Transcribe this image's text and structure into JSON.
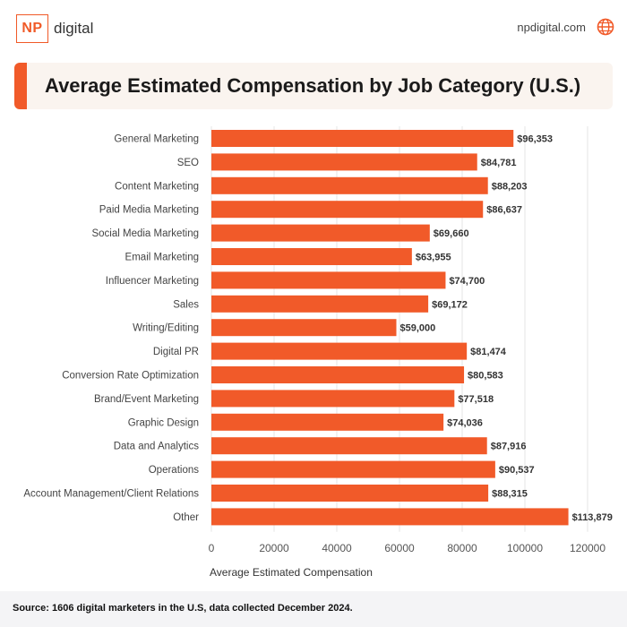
{
  "header": {
    "logo_mark": "NP",
    "logo_word": "digital",
    "site": "npdigital.com",
    "globe_icon": "globe-icon"
  },
  "accent_color": "#f15a29",
  "chart_data": {
    "type": "bar",
    "orientation": "horizontal",
    "title": "Average Estimated Compensation by Job Category (U.S.)",
    "xlabel": "Average Estimated Compensation",
    "ylabel": "",
    "xlim": [
      0,
      120000
    ],
    "xticks": [
      "0",
      "20000",
      "40000",
      "60000",
      "80000",
      "100000",
      "120000"
    ],
    "grid": "vertical",
    "categories": [
      "General Marketing",
      "SEO",
      "Content Marketing",
      "Paid Media Marketing",
      "Social Media Marketing",
      "Email Marketing",
      "Influencer Marketing",
      "Sales",
      "Writing/Editing",
      "Digital PR",
      "Conversion Rate Optimization",
      "Brand/Event Marketing",
      "Graphic Design",
      "Data and Analytics",
      "Operations",
      "Account Management/Client Relations",
      "Other"
    ],
    "values": [
      96353,
      84781,
      88203,
      86637,
      69660,
      63955,
      74700,
      69172,
      59000,
      81474,
      80583,
      77518,
      74036,
      87916,
      90537,
      88315,
      113879
    ],
    "value_labels": [
      "$96,353",
      "$84,781",
      "$88,203",
      "$86,637",
      "$69,660",
      "$63,955",
      "$74,700",
      "$69,172",
      "$59,000",
      "$81,474",
      "$80,583",
      "$77,518",
      "$74,036",
      "$87,916",
      "$90,537",
      "$88,315",
      "$113,879"
    ],
    "bar_color": "#f15a29"
  },
  "footer": {
    "source": "Source: 1606 digital marketers in the U.S, data collected December 2024."
  }
}
